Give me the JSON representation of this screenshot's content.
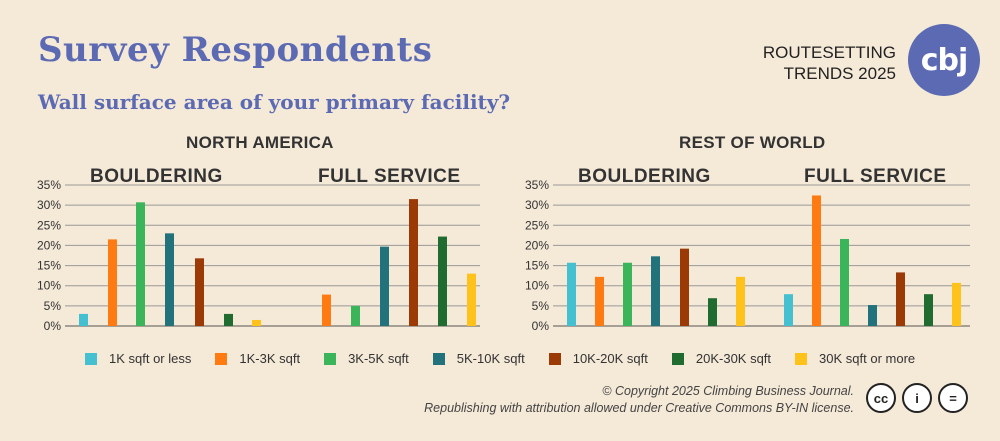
{
  "header": {
    "title": "Survey Respondents",
    "subtitle": "Wall surface area of your primary facility?",
    "brand_line1": "ROUTESETTING",
    "brand_line2": "TRENDS 2025",
    "logo_text": "cbj",
    "logo_color": "#5b6ab2"
  },
  "regions": {
    "left": "NORTH AMERICA",
    "right": "REST OF WORLD"
  },
  "sections": {
    "bouldering": "BOULDERING",
    "full_service": "FULL SERVICE"
  },
  "legend": [
    {
      "label": "1K sqft or less",
      "color": "#45c0d0"
    },
    {
      "label": "1K-3K sqft",
      "color": "#ff7a10"
    },
    {
      "label": "3K-5K sqft",
      "color": "#3bb55a"
    },
    {
      "label": "5K-10K sqft",
      "color": "#22727c"
    },
    {
      "label": "10K-20K sqft",
      "color": "#9c3a06"
    },
    {
      "label": "20K-30K sqft",
      "color": "#1f6b30"
    },
    {
      "label": "30K sqft or more",
      "color": "#ffc21a"
    }
  ],
  "footer": {
    "copyright_line1": "© Copyright 2025 Climbing Business Journal.",
    "copyright_line2": "Republishing with attribution allowed under Creative Commons BY-IN license.",
    "cc_badges": [
      "cc",
      "i",
      "="
    ]
  },
  "chart_data": [
    {
      "type": "bar",
      "title": "NORTH AMERICA",
      "y_ticks": [
        "0%",
        "5%",
        "10%",
        "15%",
        "20%",
        "25%",
        "30%",
        "35%"
      ],
      "ylim": [
        0,
        35
      ],
      "grid": true,
      "groups": [
        {
          "name": "BOULDERING",
          "values": [
            3,
            21.5,
            30.7,
            23,
            16.8,
            3,
            1.5
          ]
        },
        {
          "name": "FULL SERVICE",
          "values": [
            7.8,
            5,
            19.7,
            31.5,
            22.2,
            13
          ]
        }
      ],
      "full_service_categories": [
        1,
        2,
        3,
        4,
        5,
        6
      ]
    },
    {
      "type": "bar",
      "title": "REST OF WORLD",
      "y_ticks": [
        "0%",
        "5%",
        "10%",
        "15%",
        "20%",
        "25%",
        "30%",
        "35%"
      ],
      "ylim": [
        0,
        35
      ],
      "grid": true,
      "groups": [
        {
          "name": "BOULDERING",
          "values": [
            15.7,
            12.2,
            15.7,
            17.3,
            19.2,
            6.9,
            12.2
          ]
        },
        {
          "name": "FULL SERVICE",
          "values": [
            7.9,
            32.4,
            21.6,
            5.2,
            13.3,
            7.9,
            10.7
          ]
        }
      ],
      "full_service_categories": [
        0,
        1,
        2,
        3,
        4,
        5,
        6
      ]
    }
  ]
}
